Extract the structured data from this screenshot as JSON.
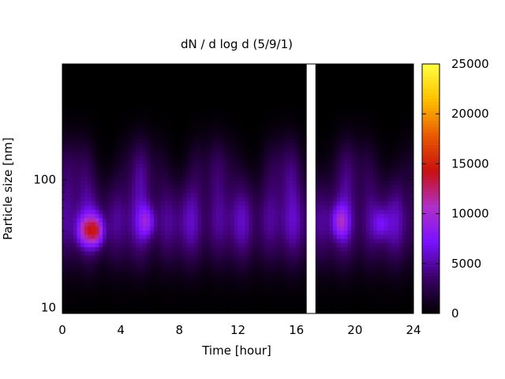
{
  "chart_data": {
    "type": "heatmap",
    "title": "dN / d log d (5/9/1)",
    "xlabel": "Time [hour]",
    "ylabel": "Particle size [nm]",
    "x_range": [
      0,
      24
    ],
    "x_ticks": [
      0,
      4,
      8,
      12,
      16,
      20,
      24
    ],
    "y_scale": "log",
    "y_range": [
      9,
      800
    ],
    "y_ticks": [
      10,
      100
    ],
    "colorbar": {
      "range": [
        0,
        25000
      ],
      "ticks": [
        0,
        5000,
        10000,
        15000,
        20000,
        25000
      ],
      "colormap": [
        "#000000",
        "#3a0066",
        "#7a10ff",
        "#b030c8",
        "#c81010",
        "#e85a00",
        "#ffc000",
        "#ffff40"
      ]
    },
    "data_gaps_hours": [
      [
        16.7,
        17.3
      ]
    ],
    "hotspots": [
      {
        "time_hour": 2.3,
        "size_nm": 40,
        "value": 13000
      },
      {
        "time_hour": 1.5,
        "size_nm": 40,
        "value": 10000
      },
      {
        "time_hour": 5.8,
        "size_nm": 47,
        "value": 8500
      },
      {
        "time_hour": 19.0,
        "size_nm": 47,
        "value": 9000
      },
      {
        "time_hour": 21.8,
        "size_nm": 45,
        "value": 7000
      }
    ],
    "grid": false,
    "legend": "colorbar-right"
  }
}
